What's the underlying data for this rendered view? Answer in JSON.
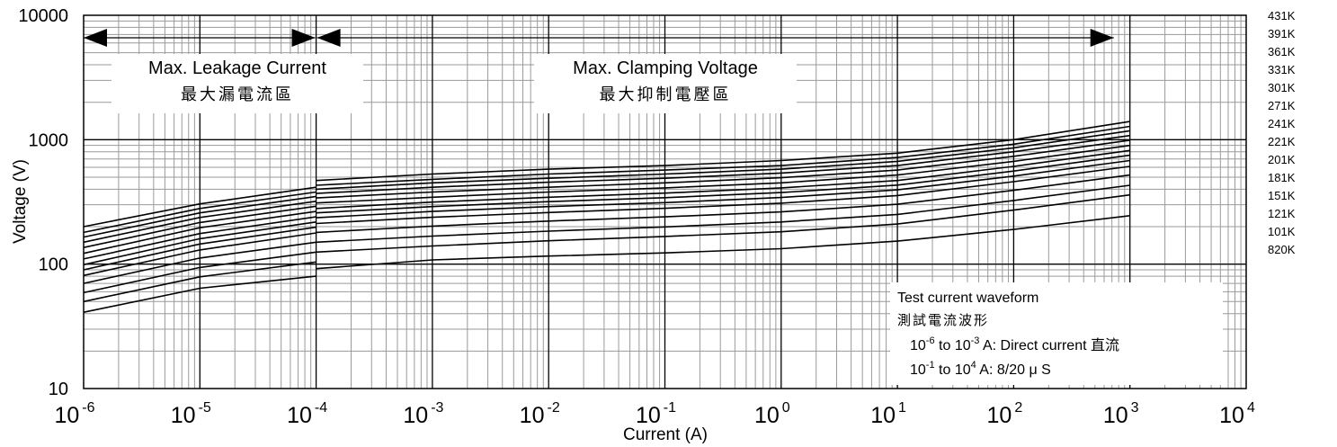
{
  "chart_data": {
    "type": "line",
    "xlabel": "Current (A)",
    "ylabel": "Voltage (V)",
    "xscale": "log",
    "yscale": "log",
    "xlim": [
      1e-06,
      10000
    ],
    "ylim": [
      10,
      10000
    ],
    "grid": true,
    "x_ticks": [
      {
        "base": "10",
        "exp": "-6"
      },
      {
        "base": "10",
        "exp": "-5"
      },
      {
        "base": "10",
        "exp": "-4"
      },
      {
        "base": "10",
        "exp": "-3"
      },
      {
        "base": "10",
        "exp": "-2"
      },
      {
        "base": "10",
        "exp": "-1"
      },
      {
        "base": "10",
        "exp": "0"
      },
      {
        "base": "10",
        "exp": "1"
      },
      {
        "base": "10",
        "exp": "2"
      },
      {
        "base": "10",
        "exp": "3"
      },
      {
        "base": "10",
        "exp": "4"
      }
    ],
    "y_ticks": [
      "10",
      "100",
      "1000",
      "10000"
    ],
    "y_tick_values": [
      10,
      100,
      1000,
      10000
    ],
    "regions": [
      {
        "label": "Max. Leakage Current",
        "label_cn": "最大漏電流區",
        "from": 1e-06,
        "to": 0.0001
      },
      {
        "label": "Max. Clamping Voltage",
        "label_cn": "最大抑制電壓區",
        "from": 0.0001,
        "to": 1000
      }
    ],
    "leakage_x": [
      1e-06,
      1e-05,
      0.0001
    ],
    "clamping_x": [
      0.0001,
      0.001,
      0.01,
      0.1,
      1,
      10,
      100,
      1000
    ],
    "series": [
      {
        "name": "431K",
        "leakage": [
          200,
          305,
          415
        ],
        "clamping": [
          470,
          530,
          580,
          620,
          680,
          780,
          1000,
          1400
        ]
      },
      {
        "name": "391K",
        "leakage": [
          180,
          280,
          380
        ],
        "clamping": [
          430,
          480,
          530,
          570,
          620,
          720,
          920,
          1280
        ]
      },
      {
        "name": "361K",
        "leakage": [
          165,
          258,
          350
        ],
        "clamping": [
          400,
          450,
          490,
          530,
          580,
          670,
          860,
          1180
        ]
      },
      {
        "name": "331K",
        "leakage": [
          150,
          237,
          320
        ],
        "clamping": [
          370,
          415,
          455,
          490,
          540,
          620,
          800,
          1080
        ]
      },
      {
        "name": "301K",
        "leakage": [
          136,
          216,
          292
        ],
        "clamping": [
          340,
          380,
          415,
          450,
          495,
          570,
          735,
          990
        ]
      },
      {
        "name": "271K",
        "leakage": [
          122,
          196,
          265
        ],
        "clamping": [
          310,
          345,
          380,
          410,
          450,
          520,
          670,
          900
        ]
      },
      {
        "name": "241K",
        "leakage": [
          110,
          176,
          240
        ],
        "clamping": [
          280,
          315,
          345,
          372,
          410,
          470,
          610,
          820
        ]
      },
      {
        "name": "221K",
        "leakage": [
          99,
          160,
          218
        ],
        "clamping": [
          258,
          290,
          318,
          342,
          376,
          432,
          560,
          750
        ]
      },
      {
        "name": "201K",
        "leakage": [
          90,
          145,
          198
        ],
        "clamping": [
          236,
          265,
          290,
          312,
          343,
          395,
          510,
          680
        ]
      },
      {
        "name": "181K",
        "leakage": [
          81,
          130,
          178
        ],
        "clamping": [
          212,
          238,
          260,
          281,
          309,
          356,
          460,
          610
        ]
      },
      {
        "name": "151K",
        "leakage": [
          70,
          112,
          150
        ],
        "clamping": [
          180,
          202,
          222,
          240,
          263,
          303,
          392,
          520
        ]
      },
      {
        "name": "121K",
        "leakage": [
          59,
          94,
          125
        ],
        "clamping": [
          150,
          168,
          184,
          199,
          218,
          251,
          325,
          430
        ]
      },
      {
        "name": "101K",
        "leakage": [
          50,
          79,
          104
        ],
        "clamping": [
          125,
          140,
          154,
          167,
          182,
          210,
          272,
          360
        ]
      },
      {
        "name": "820K",
        "leakage": [
          41,
          64,
          80
        ],
        "clamping": [
          92,
          108,
          116,
          123,
          133,
          153,
          190,
          245
        ]
      }
    ],
    "annotation": {
      "title": "Test current waveform",
      "title_cn": "測試電流波形",
      "line1_pre": "10",
      "line1_exp1": "-6",
      "line1_mid": " to 10",
      "line1_exp2": "-3",
      "line1_post": " A: Direct current 直流",
      "line2_pre": "10",
      "line2_exp1": "-1",
      "line2_mid": " to 10",
      "line2_exp2": "4",
      "line2_post": "  A: 8/20 μ S"
    },
    "colors": {
      "line": "#000000",
      "grid_major": "#000000",
      "grid_minor": "#9a9a9a"
    }
  }
}
